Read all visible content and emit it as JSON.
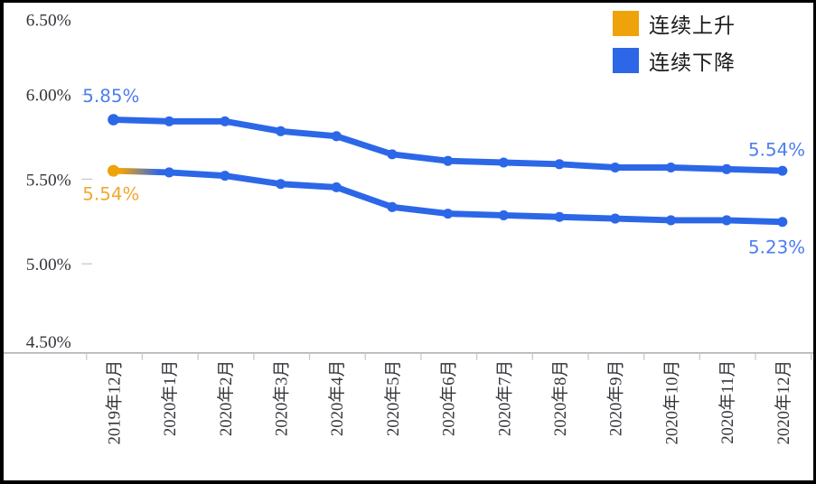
{
  "chart_data": {
    "type": "line",
    "title": "",
    "xlabel": "",
    "ylabel": "",
    "categories": [
      "2019年12月",
      "2020年1月",
      "2020年2月",
      "2020年3月",
      "2020年4月",
      "2020年5月",
      "2020年6月",
      "2020年7月",
      "2020年8月",
      "2020年9月",
      "2020年10月",
      "2020年11月",
      "2020年12月"
    ],
    "y_ticks": [
      {
        "label": "6.50%",
        "value": 6.5
      },
      {
        "label": "6.00%",
        "value": 6.0
      },
      {
        "label": "5.50%",
        "value": 5.5
      },
      {
        "label": "5.00%",
        "value": 5.0
      },
      {
        "label": "4.50%",
        "value": 4.5
      }
    ],
    "ylim": [
      4.5,
      6.5
    ],
    "grid": false,
    "legend_position": "top-right",
    "legend": [
      {
        "label": "连续上升",
        "color": "#EFA30B"
      },
      {
        "label": "连续下降",
        "color": "#2C67E8"
      }
    ],
    "series": [
      {
        "id": "upper-line",
        "values": [
          5.85,
          5.84,
          5.84,
          5.78,
          5.75,
          5.64,
          5.6,
          5.59,
          5.58,
          5.56,
          5.56,
          5.55,
          5.54
        ],
        "color": "#2C67E8",
        "start_label": {
          "text": "5.85%",
          "color": "#4C7DF1"
        },
        "end_label": {
          "text": "5.54%",
          "color": "#4C7DF1"
        }
      },
      {
        "id": "lower-line",
        "values": [
          5.54,
          5.53,
          5.51,
          5.46,
          5.44,
          5.32,
          5.28,
          5.27,
          5.26,
          5.25,
          5.24,
          5.24,
          5.23
        ],
        "color": "#2C67E8",
        "first_point_color": "#EFA30B",
        "first_segment_gradient": [
          "#EFA30B",
          "#2C67E8"
        ],
        "start_label": {
          "text": "5.54%",
          "color": "#F2A72E"
        },
        "end_label": {
          "text": "5.23%",
          "color": "#4C7DF1"
        }
      }
    ],
    "axis": {
      "line_color": "#A8ABB0",
      "tick_color": "#C6C9CE",
      "text_color": "#33353A"
    }
  }
}
